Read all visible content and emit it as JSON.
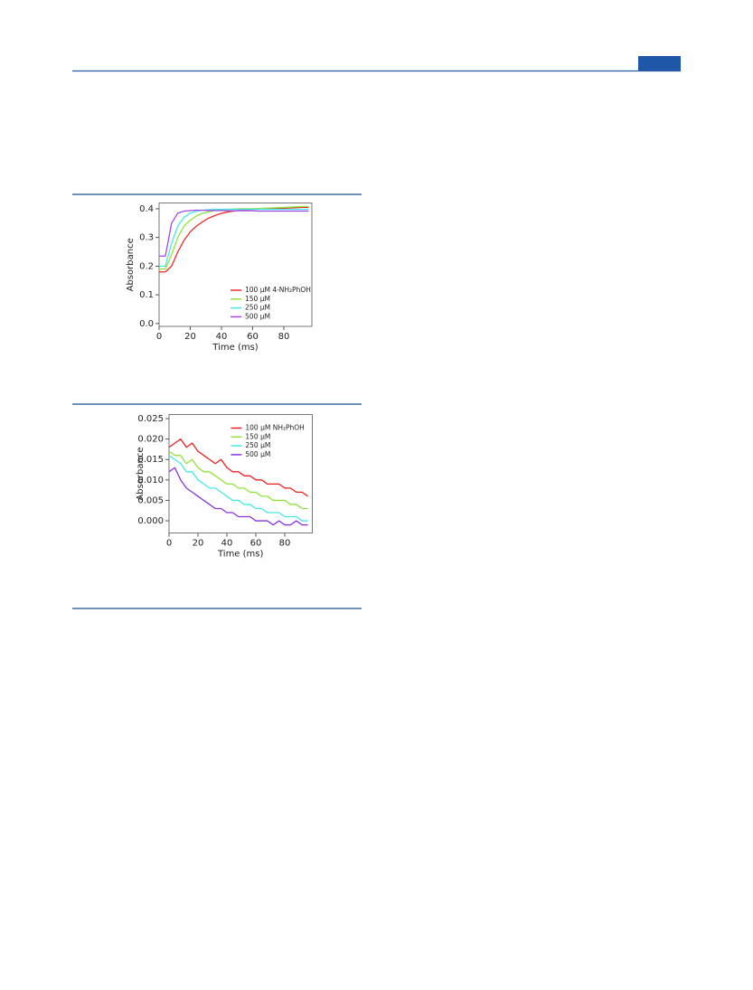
{
  "chart_data": [
    {
      "type": "line",
      "x_label": "Time (ms)",
      "y_label": "Absorbance",
      "x": [
        0,
        4,
        8,
        12,
        16,
        20,
        24,
        28,
        32,
        36,
        40,
        44,
        48,
        52,
        56,
        60,
        64,
        68,
        72,
        76,
        80,
        84,
        88,
        92,
        96
      ],
      "xlim": [
        0,
        98
      ],
      "xticks": [
        0,
        20,
        40,
        60,
        80
      ],
      "ylim": [
        -0.01,
        0.42
      ],
      "yticks": [
        {
          "value": 0,
          "label": "0.0"
        },
        0.1,
        0.2,
        0.3,
        0.4
      ],
      "legend": "lower right",
      "series": [
        {
          "name": "100 μM 4-NH₂PhOH",
          "color": "#ee2a2a",
          "values": [
            0.18,
            0.18,
            0.2,
            0.25,
            0.29,
            0.32,
            0.34,
            0.355,
            0.368,
            0.377,
            0.384,
            0.389,
            0.392,
            0.395,
            0.397,
            0.398,
            0.399,
            0.4,
            0.4,
            0.401,
            0.402,
            0.403,
            0.404,
            0.405,
            0.405
          ]
        },
        {
          "name": "150 μM",
          "color": "#8fe33a",
          "values": [
            0.19,
            0.19,
            0.24,
            0.3,
            0.34,
            0.36,
            0.375,
            0.385,
            0.39,
            0.394,
            0.396,
            0.398,
            0.399,
            0.4,
            0.4,
            0.4,
            0.401,
            0.402,
            0.403,
            0.404,
            0.405,
            0.406,
            0.407,
            0.408,
            0.408
          ]
        },
        {
          "name": "250 μM",
          "color": "#45e6e8",
          "values": [
            0.2,
            0.2,
            0.28,
            0.34,
            0.37,
            0.385,
            0.392,
            0.395,
            0.397,
            0.398,
            0.398,
            0.398,
            0.398,
            0.398,
            0.398,
            0.398,
            0.398,
            0.398,
            0.398,
            0.398,
            0.398,
            0.398,
            0.398,
            0.398,
            0.398
          ]
        },
        {
          "name": "500 μM",
          "color": "#a844f0",
          "values": [
            0.235,
            0.235,
            0.35,
            0.385,
            0.392,
            0.394,
            0.395,
            0.395,
            0.394,
            0.394,
            0.394,
            0.393,
            0.393,
            0.393,
            0.393,
            0.393,
            0.392,
            0.392,
            0.392,
            0.392,
            0.392,
            0.392,
            0.392,
            0.392,
            0.392
          ]
        }
      ]
    },
    {
      "type": "line",
      "x_label": "Time (ms)",
      "y_label": "Absorbance",
      "x": [
        0,
        4,
        8,
        12,
        16,
        20,
        24,
        28,
        32,
        36,
        40,
        44,
        48,
        52,
        56,
        60,
        64,
        68,
        72,
        76,
        80,
        84,
        88,
        92,
        96
      ],
      "xlim": [
        0,
        99
      ],
      "xticks": [
        0,
        20,
        40,
        60,
        80
      ],
      "ylim": [
        -0.003,
        0.026
      ],
      "yticks": [
        {
          "value": 0,
          "label": "0.000"
        },
        0.005,
        {
          "value": 0.01,
          "label": "0.010"
        },
        0.015,
        {
          "value": 0.02,
          "label": "0.020"
        },
        0.025
      ],
      "legend": "upper right",
      "series": [
        {
          "name": "100 μM NH₂PhOH",
          "color": "#ee2020",
          "values": [
            0.018,
            0.019,
            0.02,
            0.018,
            0.019,
            0.017,
            0.016,
            0.015,
            0.014,
            0.015,
            0.013,
            0.012,
            0.012,
            0.011,
            0.011,
            0.01,
            0.01,
            0.009,
            0.009,
            0.009,
            0.008,
            0.008,
            0.007,
            0.007,
            0.006
          ]
        },
        {
          "name": "150 μM",
          "color": "#8fe33a",
          "values": [
            0.017,
            0.016,
            0.016,
            0.014,
            0.015,
            0.013,
            0.012,
            0.012,
            0.011,
            0.01,
            0.009,
            0.009,
            0.008,
            0.008,
            0.007,
            0.007,
            0.006,
            0.006,
            0.005,
            0.005,
            0.005,
            0.004,
            0.004,
            0.003,
            0.003
          ]
        },
        {
          "name": "250 μM",
          "color": "#45e6e8",
          "values": [
            0.016,
            0.015,
            0.014,
            0.012,
            0.012,
            0.01,
            0.009,
            0.008,
            0.008,
            0.007,
            0.006,
            0.005,
            0.005,
            0.004,
            0.004,
            0.003,
            0.003,
            0.002,
            0.002,
            0.002,
            0.001,
            0.001,
            0.001,
            0.0,
            0.0
          ]
        },
        {
          "name": "500 μM",
          "color": "#8a35e0",
          "values": [
            0.012,
            0.013,
            0.01,
            0.008,
            0.007,
            0.006,
            0.005,
            0.004,
            0.003,
            0.003,
            0.002,
            0.002,
            0.001,
            0.001,
            0.001,
            0.0,
            0.0,
            0.0,
            -0.001,
            0.0,
            -0.001,
            -0.001,
            0.0,
            -0.001,
            -0.001
          ]
        }
      ]
    }
  ]
}
